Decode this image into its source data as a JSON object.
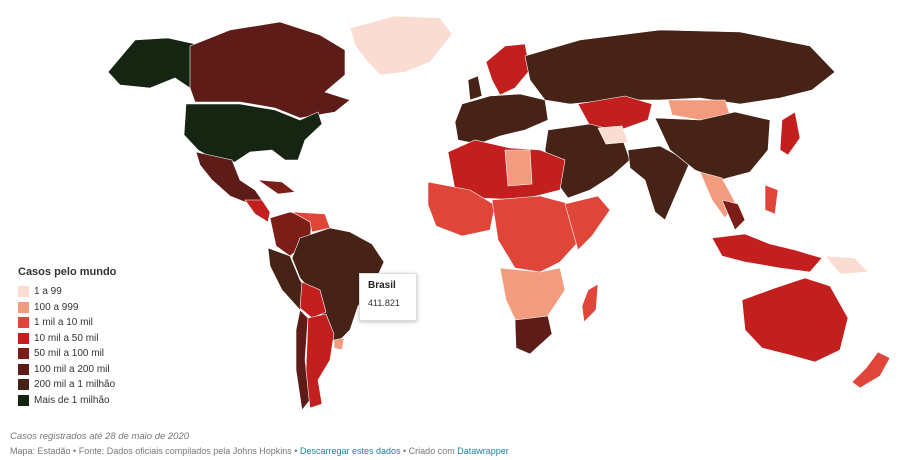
{
  "legend": {
    "title": "Casos pelo mundo",
    "items": [
      {
        "label": "1 a 99",
        "color": "#fbdcd2"
      },
      {
        "label": "100 a 999",
        "color": "#f29b7e"
      },
      {
        "label": "1 mil a 10 mil",
        "color": "#e0453a"
      },
      {
        "label": "10 mil a 50 mil",
        "color": "#c31f1f"
      },
      {
        "label": "50 mil a 100 mil",
        "color": "#7d1d17"
      },
      {
        "label": "100 mil a 200 mil",
        "color": "#5d1c17"
      },
      {
        "label": "200 mil a 1 milhão",
        "color": "#472216"
      },
      {
        "label": "Mais de 1 milhão",
        "color": "#152512"
      }
    ]
  },
  "tooltip": {
    "country": "Brasil",
    "value": "411.821"
  },
  "footer": {
    "caption": "Casos registrados até 28 de maio de 2020",
    "source_prefix": "Mapa: Estadão • Fonte: Dados oficiais compilados pela Johns Hopkins • ",
    "download_link": "Descarregar estes dados",
    "separator": " • Criado com ",
    "datawrapper_link": "Datawrapper"
  }
}
